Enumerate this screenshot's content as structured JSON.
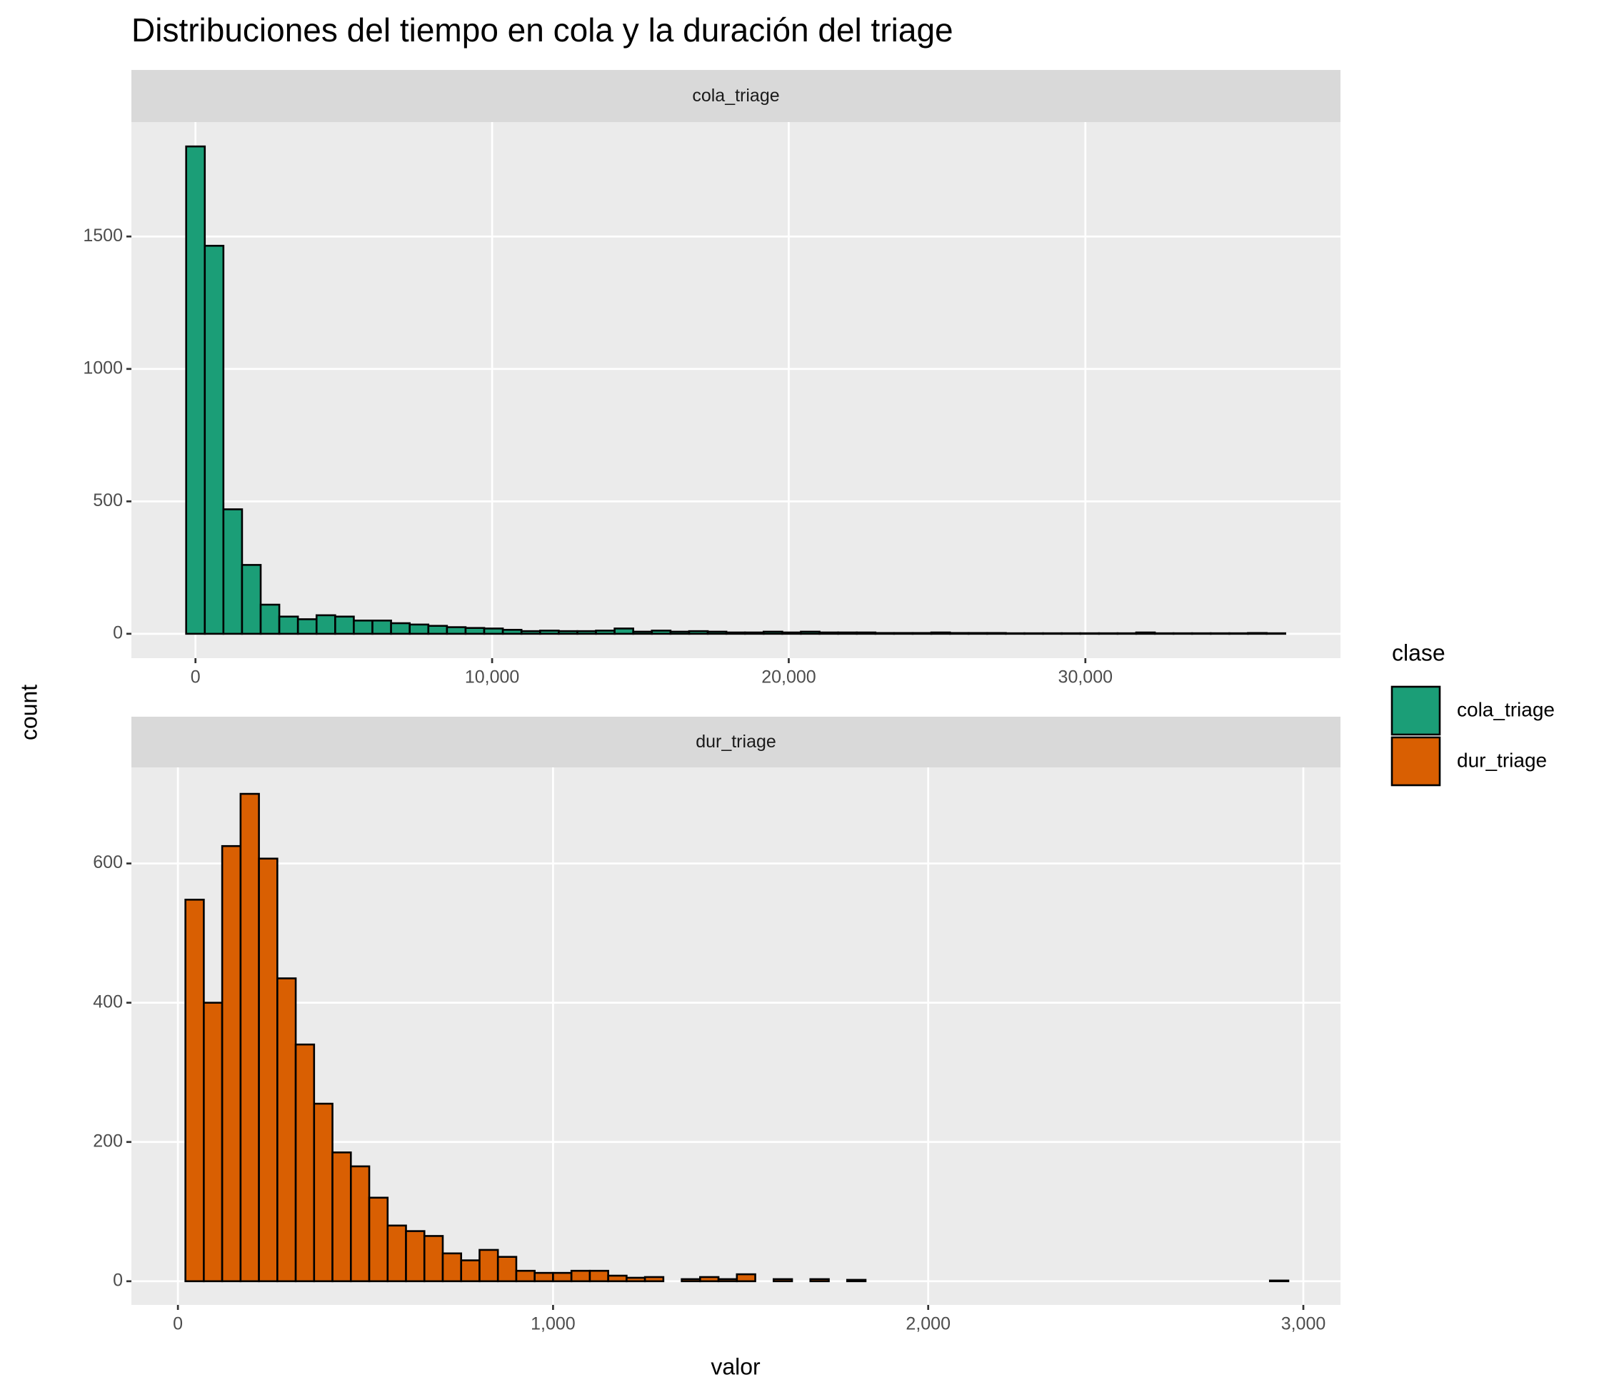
{
  "title": "Distribuciones del tiempo en cola y la duración del triage",
  "x_label": "valor",
  "y_label": "count",
  "legend_title": "clase",
  "chart_data": [
    {
      "type": "histogram",
      "grid": true,
      "series": [
        {
          "name": "cola_triage",
          "color": "#1b9e77",
          "values": [
            1840,
            1465,
            470,
            260,
            110,
            65,
            55,
            70,
            65,
            50,
            50,
            40,
            35,
            30,
            25,
            22,
            20,
            15,
            10,
            12,
            10,
            10,
            12,
            20,
            8,
            12,
            8,
            10,
            8,
            5,
            5,
            8,
            5,
            8,
            5,
            5,
            5,
            3,
            3,
            3,
            5,
            3,
            3,
            3,
            2,
            2,
            2,
            2,
            2,
            2,
            2,
            5,
            2,
            2,
            2,
            2,
            2,
            3,
            2
          ]
        }
      ],
      "bins": [
        -314,
        314,
        942,
        1570,
        2198,
        2826,
        3454,
        4082,
        4710,
        5338,
        5966,
        6594,
        7222,
        7850,
        8478,
        9106,
        9734,
        10362,
        10990,
        11618,
        12246,
        12874,
        13502,
        14130,
        14758,
        15386,
        16014,
        16642,
        17270,
        17898,
        18526,
        19154,
        19782,
        20410,
        21038,
        21666,
        22294,
        22922,
        23550,
        24178,
        24806,
        25434,
        26062,
        26690,
        27318,
        27946,
        28574,
        29202,
        29830,
        30458,
        31086,
        31714,
        32342,
        32970,
        33598,
        34226,
        34854,
        35482,
        36110,
        36738
      ],
      "xlim": [
        -2160,
        38600
      ],
      "xticks": [
        0,
        {
          "value": 10000,
          "label": "10,000"
        },
        {
          "value": 20000,
          "label": "20,000"
        },
        {
          "value": 30000,
          "label": "30,000"
        }
      ],
      "ylim": [
        -92,
        1932
      ],
      "yticks": [
        0,
        500,
        1000,
        1500
      ]
    },
    {
      "type": "histogram",
      "grid": true,
      "series": [
        {
          "name": "dur_triage",
          "color": "#d95f02",
          "values": [
            548,
            400,
            625,
            700,
            607,
            435,
            340,
            255,
            185,
            165,
            120,
            80,
            72,
            65,
            40,
            30,
            45,
            35,
            15,
            12,
            12,
            15,
            15,
            8,
            5,
            6,
            0,
            3,
            6,
            3,
            10,
            0,
            3,
            0,
            3,
            0,
            2,
            0,
            0,
            0,
            0,
            0,
            0,
            0,
            0,
            0,
            0,
            0,
            0,
            0,
            0,
            0,
            0,
            0,
            0,
            0,
            0,
            0,
            0,
            1
          ]
        }
      ],
      "bins": [
        20,
        69,
        118,
        167,
        216,
        265,
        314,
        363,
        412,
        461,
        510,
        559,
        608,
        657,
        706,
        755,
        804,
        853,
        902,
        951,
        1000,
        1049,
        1098,
        1147,
        1196,
        1245,
        1294,
        1343,
        1392,
        1441,
        1490,
        1539,
        1588,
        1637,
        1686,
        1735,
        1784,
        1833,
        1882,
        1931,
        1980,
        2029,
        2078,
        2127,
        2176,
        2225,
        2274,
        2323,
        2372,
        2421,
        2470,
        2519,
        2568,
        2617,
        2666,
        2715,
        2764,
        2813,
        2862,
        2911,
        2960
      ],
      "xlim": [
        -124,
        3099
      ],
      "xticks": [
        0,
        {
          "value": 1000,
          "label": "1,000"
        },
        {
          "value": 2000,
          "label": "2,000"
        },
        {
          "value": 3000,
          "label": "3,000"
        }
      ],
      "ylim": [
        -34,
        738
      ],
      "yticks": [
        0,
        200,
        400,
        600
      ]
    }
  ]
}
